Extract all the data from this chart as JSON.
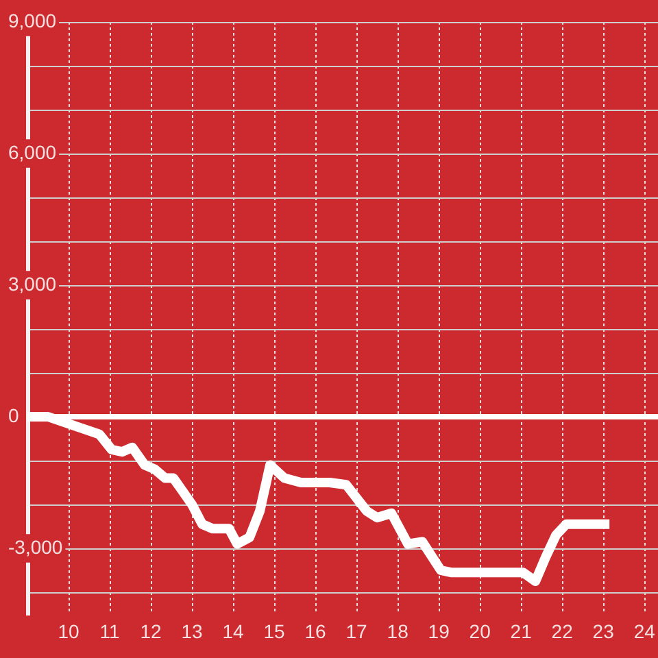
{
  "chart_data": {
    "type": "line",
    "x": [
      9,
      9.5,
      10.75,
      11.05,
      11.3,
      11.55,
      11.85,
      12.1,
      12.35,
      12.55,
      13,
      13.25,
      13.5,
      13.9,
      14.1,
      14.4,
      14.65,
      14.9,
      15.25,
      15.65,
      16.35,
      16.75,
      17.25,
      17.5,
      17.85,
      18.25,
      18.6,
      19.05,
      19.3,
      21.05,
      21.35,
      21.6,
      21.85,
      22.1,
      23.15
    ],
    "series": [
      {
        "color": "#ffffff",
        "values": [
          0,
          0,
          -400,
          -750,
          -800,
          -700,
          -1100,
          -1200,
          -1400,
          -1400,
          -2000,
          -2450,
          -2550,
          -2550,
          -2900,
          -2750,
          -2150,
          -1100,
          -1400,
          -1500,
          -1500,
          -1550,
          -2150,
          -2300,
          -2200,
          -2900,
          -2850,
          -3500,
          -3550,
          -3550,
          -3750,
          -3200,
          -2700,
          -2450,
          -2450
        ]
      }
    ],
    "xlim": [
      9,
      24.33
    ],
    "xticks": [
      10,
      11,
      12,
      13,
      14,
      15,
      16,
      17,
      18,
      19,
      20,
      21,
      22,
      23,
      24
    ],
    "ylim": [
      -4500,
      9000
    ],
    "yticks": [
      {
        "value": 9000,
        "label": "9,000"
      },
      {
        "value": 8000,
        "label": null
      },
      {
        "value": 7000,
        "label": null
      },
      {
        "value": 6000,
        "label": "6,000"
      },
      {
        "value": 5000,
        "label": null
      },
      {
        "value": 4000,
        "label": null
      },
      {
        "value": 3000,
        "label": "3,000"
      },
      {
        "value": 2000,
        "label": null
      },
      {
        "value": 1000,
        "label": null
      },
      0,
      {
        "value": -1000,
        "label": null
      },
      {
        "value": -2000,
        "label": null
      },
      {
        "value": -3000,
        "label": "-3,000"
      },
      {
        "value": -4000,
        "label": null
      }
    ],
    "ref_lines": [
      {
        "axis": "y",
        "value": 0,
        "color": "#ffffff"
      }
    ],
    "grid": true,
    "legend": false,
    "marker": "none"
  }
}
